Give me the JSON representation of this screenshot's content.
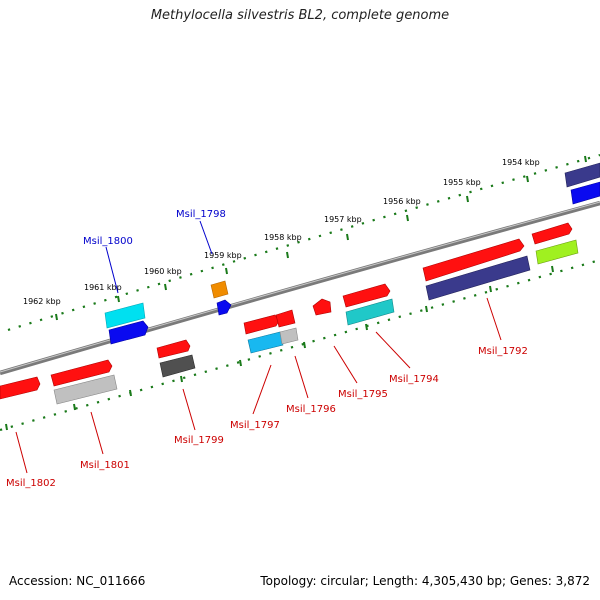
{
  "title": "Methylocella silvestris BL2, complete genome",
  "footer": {
    "accession": "Accession: NC_011666",
    "summary": "Topology: circular; Length: 4,305,430 bp; Genes: 3,872"
  },
  "colors": {
    "backbone": "#8a8a8a",
    "ticks": "#1a7a1a",
    "label_top": "#0000cc",
    "label_bottom": "#cc0000"
  },
  "kbp_ticks": [
    "1962 kbp",
    "1961 kbp",
    "1960 kbp",
    "1959 kbp",
    "1958 kbp",
    "1957 kbp",
    "1956 kbp",
    "1955 kbp",
    "1954 kbp"
  ],
  "gene_labels": {
    "top": [
      "Msil_1800",
      "Msil_1798"
    ],
    "bottom": [
      "Msil_1802",
      "Msil_1801",
      "Msil_1799",
      "Msil_1797",
      "Msil_1796",
      "Msil_1795",
      "Msil_1794",
      "Msil_1792"
    ]
  },
  "gene_colors": [
    "#ff1010",
    "#0a0af0",
    "#00e0f0",
    "#f08c00",
    "#505050",
    "#c0c0c0",
    "#3a3a8c",
    "#20c8c8",
    "#a0f020",
    "#18b8f0"
  ]
}
